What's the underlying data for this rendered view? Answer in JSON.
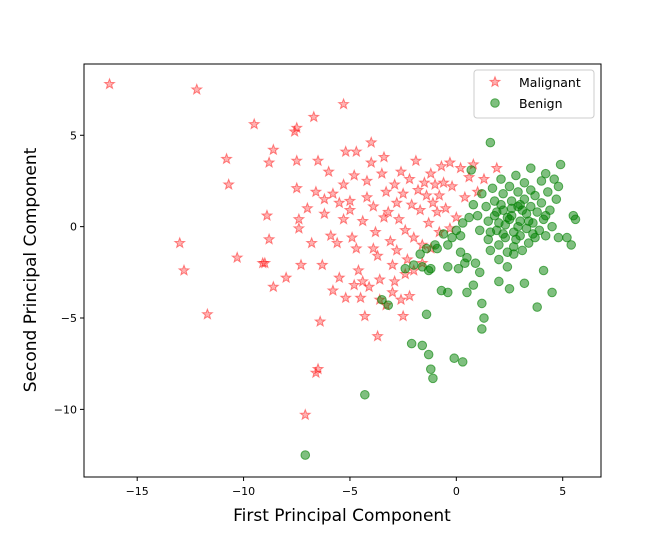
{
  "chart_data": {
    "type": "scatter",
    "title": "",
    "xlabel": "First Principal Component",
    "ylabel": "Second Principal Component",
    "xlim": [
      -17.5,
      6.8
    ],
    "ylim": [
      -13.7,
      8.9
    ],
    "xticks": [
      -15,
      -10,
      -5,
      0,
      5
    ],
    "yticks": [
      -10,
      -5,
      0,
      5
    ],
    "xtick_labels": [
      "−15",
      "−10",
      "−5",
      "0",
      "5"
    ],
    "ytick_labels": [
      "−10",
      "−5",
      "0",
      "5"
    ],
    "grid": false,
    "legend_position": "top-right",
    "series": [
      {
        "name": "Malignant",
        "marker": "star",
        "color": "#ff0000",
        "points": [
          [
            -16.3,
            7.8
          ],
          [
            -12.2,
            7.5
          ],
          [
            -9.5,
            5.6
          ],
          [
            -7.5,
            5.4
          ],
          [
            -7.6,
            5.2
          ],
          [
            -6.7,
            6.0
          ],
          [
            -5.3,
            6.7
          ],
          [
            -10.8,
            3.7
          ],
          [
            -10.7,
            2.3
          ],
          [
            -8.6,
            4.2
          ],
          [
            -8.8,
            3.5
          ],
          [
            -7.5,
            3.6
          ],
          [
            -6.5,
            3.6
          ],
          [
            -5.2,
            4.1
          ],
          [
            -4.7,
            4.1
          ],
          [
            -13.0,
            -0.9
          ],
          [
            -12.8,
            -2.4
          ],
          [
            -11.7,
            -4.8
          ],
          [
            -10.3,
            -1.7
          ],
          [
            -9.1,
            -2.0
          ],
          [
            -9.0,
            -2.0
          ],
          [
            -8.8,
            -0.7
          ],
          [
            -8.9,
            0.6
          ],
          [
            -8.6,
            -3.3
          ],
          [
            -8.0,
            -2.8
          ],
          [
            -7.4,
            -0.1
          ],
          [
            -7.3,
            -2.1
          ],
          [
            -6.8,
            -0.9
          ],
          [
            -6.3,
            -2.1
          ],
          [
            -6.4,
            -5.2
          ],
          [
            -6.5,
            -7.8
          ],
          [
            -6.6,
            -8.0
          ],
          [
            -7.1,
            -10.3
          ],
          [
            -5.8,
            -3.5
          ],
          [
            -5.2,
            -3.9
          ],
          [
            -4.8,
            -3.2
          ],
          [
            -4.5,
            -3.9
          ],
          [
            -4.3,
            -4.9
          ],
          [
            -3.7,
            -6.0
          ],
          [
            -3.3,
            -4.3
          ],
          [
            -3.0,
            -3.6
          ],
          [
            -2.6,
            -4.0
          ],
          [
            -2.5,
            -4.9
          ],
          [
            -2.2,
            -3.8
          ],
          [
            -2.0,
            -2.4
          ],
          [
            -1.6,
            -2.0
          ],
          [
            -1.2,
            -1.2
          ],
          [
            -7.5,
            2.1
          ],
          [
            -7.4,
            0.4
          ],
          [
            -7.0,
            1.0
          ],
          [
            -6.6,
            1.9
          ],
          [
            -6.2,
            1.5
          ],
          [
            -6.2,
            0.7
          ],
          [
            -5.9,
            -0.5
          ],
          [
            -5.6,
            -0.9
          ],
          [
            -5.5,
            1.3
          ],
          [
            -5.3,
            0.4
          ],
          [
            -5.3,
            2.3
          ],
          [
            -5.0,
            1.4
          ],
          [
            -5.0,
            0.9
          ],
          [
            -4.9,
            -0.6
          ],
          [
            -4.7,
            -1.2
          ],
          [
            -4.6,
            -2.4
          ],
          [
            -4.4,
            -3.0
          ],
          [
            -4.4,
            0.3
          ],
          [
            -4.2,
            1.6
          ],
          [
            -4.2,
            2.5
          ],
          [
            -4.0,
            3.5
          ],
          [
            -4.0,
            4.6
          ],
          [
            -3.9,
            1.1
          ],
          [
            -3.8,
            -0.3
          ],
          [
            -3.7,
            -1.6
          ],
          [
            -3.6,
            -2.9
          ],
          [
            -3.5,
            2.9
          ],
          [
            -3.4,
            3.8
          ],
          [
            -3.3,
            1.9
          ],
          [
            -3.2,
            0.8
          ],
          [
            -3.1,
            -0.8
          ],
          [
            -3.0,
            -2.1
          ],
          [
            -2.9,
            2.3
          ],
          [
            -2.8,
            1.3
          ],
          [
            -2.8,
            -1.3
          ],
          [
            -2.7,
            0.4
          ],
          [
            -2.6,
            3.0
          ],
          [
            -2.5,
            1.8
          ],
          [
            -2.4,
            -0.2
          ],
          [
            -2.3,
            -1.8
          ],
          [
            -2.2,
            2.6
          ],
          [
            -2.1,
            1.2
          ],
          [
            -2.0,
            -0.6
          ],
          [
            -1.9,
            3.6
          ],
          [
            -1.8,
            2.0
          ],
          [
            -1.7,
            0.9
          ],
          [
            -1.6,
            -1.0
          ],
          [
            -1.5,
            2.4
          ],
          [
            -1.4,
            1.7
          ],
          [
            -1.3,
            0.2
          ],
          [
            -1.2,
            2.9
          ],
          [
            -1.1,
            1.3
          ],
          [
            -1.0,
            2.3
          ],
          [
            -0.9,
            0.8
          ],
          [
            -0.8,
            1.7
          ],
          [
            -0.8,
            -0.3
          ],
          [
            -0.7,
            3.3
          ],
          [
            -0.6,
            2.4
          ],
          [
            -0.5,
            1.0
          ],
          [
            -0.3,
            3.5
          ],
          [
            -0.2,
            2.2
          ],
          [
            0.2,
            3.2
          ],
          [
            0.4,
            1.6
          ],
          [
            0.6,
            2.7
          ],
          [
            0.8,
            3.4
          ],
          [
            1.0,
            1.9
          ],
          [
            1.3,
            2.6
          ],
          [
            1.9,
            3.2
          ],
          [
            0.0,
            0.5
          ],
          [
            -0.3,
            -0.1
          ],
          [
            -3.4,
            0.5
          ],
          [
            -3.9,
            -1.2
          ],
          [
            -4.8,
            2.8
          ],
          [
            -5.8,
            1.8
          ],
          [
            -6.0,
            3.0
          ],
          [
            -5.5,
            -2.8
          ],
          [
            -4.1,
            -3.3
          ],
          [
            -3.6,
            -4.0
          ],
          [
            -2.9,
            -3.0
          ],
          [
            -2.4,
            -2.6
          ]
        ]
      },
      {
        "name": "Benign",
        "marker": "circle",
        "color": "#008000",
        "points": [
          [
            -7.1,
            -12.5
          ],
          [
            -4.3,
            -9.2
          ],
          [
            -1.2,
            -7.8
          ],
          [
            -1.1,
            -8.3
          ],
          [
            0.3,
            -7.4
          ],
          [
            -0.1,
            -7.2
          ],
          [
            -2.1,
            -6.4
          ],
          [
            -1.6,
            -6.5
          ],
          [
            -1.3,
            -7.0
          ],
          [
            -3.5,
            -4.0
          ],
          [
            -3.2,
            -4.3
          ],
          [
            -1.4,
            -4.8
          ],
          [
            -0.7,
            -3.5
          ],
          [
            -0.4,
            -3.6
          ],
          [
            0.5,
            -3.6
          ],
          [
            0.8,
            -3.2
          ],
          [
            1.2,
            -4.2
          ],
          [
            1.3,
            -5.0
          ],
          [
            1.2,
            -5.6
          ],
          [
            2.0,
            -3.0
          ],
          [
            2.5,
            -3.4
          ],
          [
            3.2,
            -3.1
          ],
          [
            3.8,
            -4.4
          ],
          [
            4.5,
            -3.6
          ],
          [
            4.1,
            -2.4
          ],
          [
            1.6,
            4.6
          ],
          [
            0.7,
            3.1
          ],
          [
            3.5,
            3.2
          ],
          [
            4.2,
            2.9
          ],
          [
            4.9,
            3.4
          ],
          [
            5.5,
            0.6
          ],
          [
            5.6,
            0.4
          ],
          [
            5.2,
            -0.6
          ],
          [
            5.4,
            -1.0
          ],
          [
            4.8,
            -0.6
          ],
          [
            -2.4,
            -2.3
          ],
          [
            -1.6,
            -2.2
          ],
          [
            -1.3,
            -2.4
          ],
          [
            -0.4,
            -2.2
          ],
          [
            0.1,
            -2.3
          ],
          [
            -1.4,
            -1.2
          ],
          [
            -1.0,
            -1.0
          ],
          [
            -0.4,
            -1.0
          ],
          [
            -0.2,
            -0.6
          ],
          [
            0.2,
            -1.4
          ],
          [
            0.5,
            -1.7
          ],
          [
            0.9,
            -2.0
          ],
          [
            1.1,
            -2.5
          ],
          [
            0.3,
            0.2
          ],
          [
            0.6,
            0.5
          ],
          [
            0.8,
            1.2
          ],
          [
            1.0,
            0.6
          ],
          [
            1.1,
            -0.2
          ],
          [
            1.2,
            1.8
          ],
          [
            1.4,
            1.1
          ],
          [
            1.5,
            0.3
          ],
          [
            1.5,
            -0.7
          ],
          [
            1.6,
            -1.3
          ],
          [
            1.7,
            2.1
          ],
          [
            1.8,
            1.4
          ],
          [
            1.8,
            0.6
          ],
          [
            1.9,
            -0.2
          ],
          [
            2.0,
            -1.0
          ],
          [
            2.0,
            -1.8
          ],
          [
            2.1,
            2.6
          ],
          [
            2.2,
            1.8
          ],
          [
            2.2,
            0.9
          ],
          [
            2.3,
            0.1
          ],
          [
            2.3,
            -0.6
          ],
          [
            2.4,
            -1.4
          ],
          [
            2.4,
            -2.2
          ],
          [
            2.5,
            2.2
          ],
          [
            2.6,
            1.4
          ],
          [
            2.6,
            0.6
          ],
          [
            2.7,
            -0.3
          ],
          [
            2.7,
            -1.1
          ],
          [
            2.8,
            2.8
          ],
          [
            2.9,
            1.9
          ],
          [
            2.9,
            1.1
          ],
          [
            3.0,
            0.3
          ],
          [
            3.0,
            -0.5
          ],
          [
            3.1,
            -1.3
          ],
          [
            3.2,
            2.4
          ],
          [
            3.2,
            1.5
          ],
          [
            3.3,
            0.7
          ],
          [
            3.3,
            -0.1
          ],
          [
            3.4,
            -0.9
          ],
          [
            3.5,
            2.0
          ],
          [
            3.5,
            1.1
          ],
          [
            3.6,
            0.2
          ],
          [
            3.7,
            -0.6
          ],
          [
            3.7,
            1.7
          ],
          [
            3.8,
            0.8
          ],
          [
            3.9,
            -0.2
          ],
          [
            4.0,
            2.5
          ],
          [
            4.0,
            1.3
          ],
          [
            4.1,
            0.4
          ],
          [
            4.2,
            -0.5
          ],
          [
            4.3,
            1.9
          ],
          [
            4.4,
            0.9
          ],
          [
            4.5,
            0.0
          ],
          [
            4.6,
            2.6
          ],
          [
            4.7,
            1.5
          ],
          [
            4.8,
            2.2
          ],
          [
            2.5,
            0.4
          ],
          [
            2.8,
            -0.7
          ],
          [
            3.1,
            0.9
          ],
          [
            2.2,
            -0.4
          ],
          [
            1.9,
            0.8
          ],
          [
            2.6,
            1.0
          ],
          [
            3.4,
            0.3
          ],
          [
            2.0,
            0.2
          ],
          [
            2.9,
            0.0
          ],
          [
            2.4,
            0.5
          ],
          [
            3.0,
            1.2
          ],
          [
            2.7,
            -1.5
          ],
          [
            1.6,
            -0.3
          ],
          [
            2.1,
            1.2
          ],
          [
            3.6,
            -0.4
          ],
          [
            4.2,
            0.6
          ],
          [
            0.0,
            -0.2
          ],
          [
            0.2,
            -0.5
          ],
          [
            -0.6,
            -0.4
          ],
          [
            -0.9,
            -1.2
          ],
          [
            -1.7,
            -1.5
          ],
          [
            -2.0,
            -2.1
          ],
          [
            -1.2,
            -2.3
          ],
          [
            0.4,
            -2.0
          ]
        ]
      }
    ]
  }
}
